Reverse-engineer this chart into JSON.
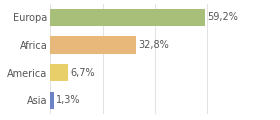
{
  "categories": [
    "Asia",
    "America",
    "Africa",
    "Europa"
  ],
  "values": [
    1.3,
    6.7,
    32.8,
    59.2
  ],
  "labels": [
    "1,3%",
    "6,7%",
    "32,8%",
    "59,2%"
  ],
  "bar_colors": [
    "#6b82c4",
    "#e8cf6a",
    "#e8b87a",
    "#a8bf7a"
  ],
  "background_color": "#ffffff",
  "xlim": [
    0,
    75
  ],
  "bar_height": 0.62,
  "label_fontsize": 7,
  "tick_fontsize": 7,
  "grid_xticks": [
    0,
    20,
    40,
    60
  ],
  "grid_color": "#dddddd",
  "text_color": "#555555"
}
